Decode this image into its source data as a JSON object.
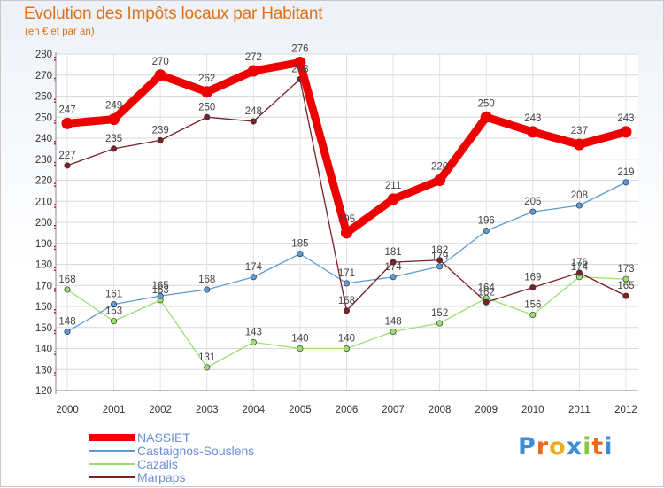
{
  "title": "Evolution des Impôts locaux par Habitant",
  "subtitle": "(en € et par an)",
  "logo": {
    "text": "Proxiti",
    "letters": [
      "P",
      "r",
      "o",
      "x",
      "i",
      "t",
      "i"
    ],
    "colors": [
      "#3a8fd8",
      "#e86a1a",
      "#e8b020",
      "#3a8fd8",
      "#8cc63f",
      "#e86a1a",
      "#3a8fd8"
    ]
  },
  "chart_data": {
    "type": "line",
    "title": "Evolution des Impôts locaux par Habitant",
    "subtitle": "(en € et par an)",
    "xlabel": "",
    "ylabel": "",
    "x": [
      "2000",
      "2001",
      "2002",
      "2003",
      "2004",
      "2005",
      "2006",
      "2007",
      "2008",
      "2009",
      "2010",
      "2011",
      "2012"
    ],
    "ylim": [
      120,
      280
    ],
    "yticks": [
      120,
      130,
      140,
      150,
      160,
      170,
      180,
      190,
      200,
      210,
      220,
      230,
      240,
      250,
      260,
      270,
      280
    ],
    "grid": true,
    "legend_position": "bottom-left",
    "series": [
      {
        "name": "NASSIET",
        "color": "#ee0000",
        "values": [
          247,
          249,
          270,
          262,
          272,
          276,
          195,
          211,
          220,
          250,
          243,
          237,
          243
        ]
      },
      {
        "name": "Castaignos-Souslens",
        "color": "#5b9bd5",
        "values": [
          148,
          161,
          165,
          168,
          174,
          185,
          171,
          174,
          179,
          196,
          205,
          208,
          219
        ]
      },
      {
        "name": "Cazalis",
        "color": "#99e070",
        "values": [
          168,
          153,
          163,
          131,
          143,
          140,
          140,
          148,
          152,
          164,
          156,
          174,
          173
        ]
      },
      {
        "name": "Marpaps",
        "color": "#7a2028",
        "values": [
          227,
          235,
          239,
          250,
          248,
          268,
          158,
          181,
          182,
          162,
          169,
          176,
          165
        ]
      }
    ]
  }
}
